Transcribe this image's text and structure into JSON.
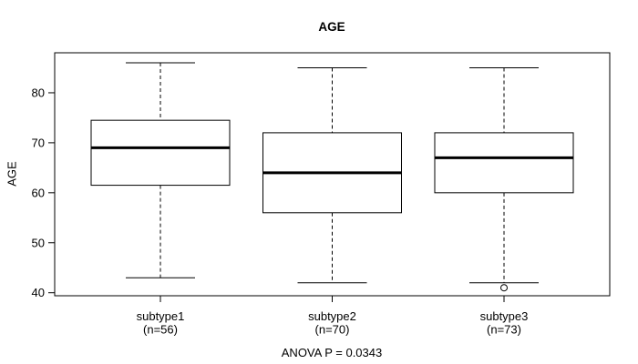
{
  "chart_data": {
    "type": "boxplot",
    "title": "AGE",
    "ylabel": "AGE",
    "xlabel": "",
    "annotation": "ANOVA P = 0.0343",
    "yticks": [
      40,
      50,
      60,
      70,
      80
    ],
    "ylim": [
      39.4,
      88.0
    ],
    "grid": false,
    "legend": "none",
    "categories": [
      "subtype1",
      "subtype2",
      "subtype3"
    ],
    "groups": [
      {
        "label": "subtype1",
        "count_label": "(n=56)",
        "n": 56,
        "whisker_low": 43,
        "q1": 61.5,
        "median": 69,
        "q3": 74.5,
        "whisker_high": 86,
        "outliers": []
      },
      {
        "label": "subtype2",
        "count_label": "(n=70)",
        "n": 70,
        "whisker_low": 42,
        "q1": 56,
        "median": 64,
        "q3": 72,
        "whisker_high": 85,
        "outliers": []
      },
      {
        "label": "subtype3",
        "count_label": "(n=73)",
        "n": 73,
        "whisker_low": 42,
        "q1": 60,
        "median": 67,
        "q3": 72,
        "whisker_high": 85,
        "outliers": [
          41
        ]
      }
    ],
    "colors": {
      "line": "#000000",
      "median": "#000000",
      "box_fill": "#ffffff",
      "text": "#000000",
      "background": "#ffffff"
    }
  }
}
